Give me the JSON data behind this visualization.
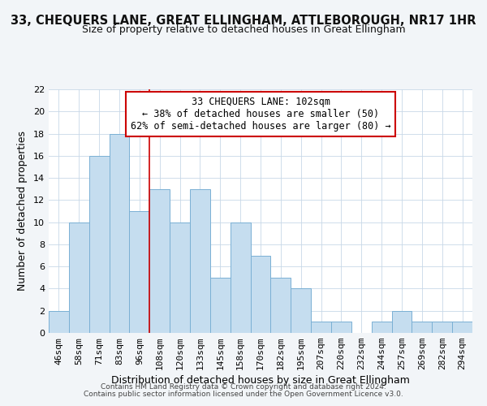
{
  "title": "33, CHEQUERS LANE, GREAT ELLINGHAM, ATTLEBOROUGH, NR17 1HR",
  "subtitle": "Size of property relative to detached houses in Great Ellingham",
  "xlabel": "Distribution of detached houses by size in Great Ellingham",
  "ylabel": "Number of detached properties",
  "bar_color": "#c5ddef",
  "bar_edge_color": "#7ab0d4",
  "categories": [
    "46sqm",
    "58sqm",
    "71sqm",
    "83sqm",
    "96sqm",
    "108sqm",
    "120sqm",
    "133sqm",
    "145sqm",
    "158sqm",
    "170sqm",
    "182sqm",
    "195sqm",
    "207sqm",
    "220sqm",
    "232sqm",
    "244sqm",
    "257sqm",
    "269sqm",
    "282sqm",
    "294sqm"
  ],
  "values": [
    2,
    10,
    16,
    18,
    11,
    13,
    10,
    13,
    5,
    10,
    7,
    5,
    4,
    1,
    1,
    0,
    1,
    2,
    1,
    1,
    1
  ],
  "ylim": [
    0,
    22
  ],
  "yticks": [
    0,
    2,
    4,
    6,
    8,
    10,
    12,
    14,
    16,
    18,
    20,
    22
  ],
  "vline_x_index": 4.5,
  "vline_color": "#cc0000",
  "annotation_line1": "33 CHEQUERS LANE: 102sqm",
  "annotation_line2": "← 38% of detached houses are smaller (50)",
  "annotation_line3": "62% of semi-detached houses are larger (80) →",
  "annotation_box_color": "#ffffff",
  "annotation_box_edge": "#cc0000",
  "footer1": "Contains HM Land Registry data © Crown copyright and database right 2024.",
  "footer2": "Contains public sector information licensed under the Open Government Licence v3.0.",
  "background_color": "#f2f5f8",
  "plot_bg_color": "#ffffff",
  "grid_color": "#c8d8e8",
  "title_fontsize": 10.5,
  "subtitle_fontsize": 9.0,
  "xlabel_fontsize": 9.0,
  "ylabel_fontsize": 9.0,
  "tick_fontsize": 8.0,
  "annot_fontsize": 8.5,
  "footer_fontsize": 6.5
}
